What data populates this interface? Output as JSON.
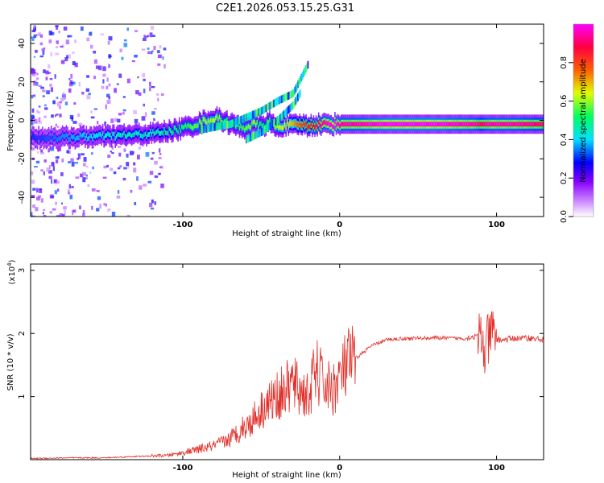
{
  "title": "C2E1.2026.053.15.25.G31",
  "chart_data": [
    {
      "type": "heatmap",
      "xlabel": "Height of straight line (km)",
      "ylabel": "Frequency (Hz)",
      "xlim": [
        -197,
        130
      ],
      "ylim": [
        -50,
        50
      ],
      "xticks": [
        -100,
        0,
        100
      ],
      "yticks": [
        -40,
        -20,
        0,
        20,
        40
      ],
      "ridge": {
        "x": [
          -197,
          -180,
          -160,
          -140,
          -120,
          -105,
          -95,
          -85,
          -78,
          -72,
          -66,
          -62,
          -55,
          -50,
          -45,
          -40,
          -35,
          -30,
          -25,
          -20,
          -15,
          -10,
          -5,
          0,
          10,
          30,
          60,
          85,
          90,
          95,
          110,
          130
        ],
        "y": [
          -9,
          -9,
          -8.5,
          -8,
          -7,
          -5,
          -3,
          0,
          1,
          -1,
          -3,
          -4,
          -2,
          -3,
          -1,
          -4,
          -2,
          -3,
          -2,
          -3,
          -2,
          -2,
          -2,
          -2,
          -2,
          -2,
          -2,
          -2,
          -2,
          -2,
          -2,
          -2
        ],
        "amplitude": [
          0.3,
          0.35,
          0.4,
          0.45,
          0.45,
          0.5,
          0.55,
          0.6,
          0.6,
          0.5,
          0.55,
          0.55,
          0.6,
          0.5,
          0.55,
          0.6,
          0.65,
          0.7,
          0.8,
          0.85,
          0.9,
          0.95,
          1.0,
          0.95,
          0.95,
          1.0,
          1.0,
          0.95,
          0.9,
          0.95,
          0.95,
          0.9
        ]
      },
      "branches": [
        {
          "x": [
            -90,
            -70,
            -50,
            -40,
            -30,
            -20
          ],
          "y": [
            -5,
            -2,
            5,
            10,
            14,
            30
          ]
        },
        {
          "x": [
            -60,
            -50,
            -40,
            -30,
            -25
          ],
          "y": [
            -10,
            -6,
            0,
            8,
            15
          ]
        }
      ],
      "colorbar": {
        "label": "Normalized spectral amplitude",
        "range": [
          0,
          1
        ],
        "ticks": [
          "0.0",
          "0.2",
          "0.4",
          "0.6",
          "0.8"
        ],
        "colors": [
          "#ffffff",
          "#8800ff",
          "#0000ff",
          "#00e0ff",
          "#00ff60",
          "#e0ff00",
          "#ff6000",
          "#ff0040",
          "#ff00ff"
        ]
      }
    },
    {
      "type": "line",
      "xlabel": "Height of straight line (km)",
      "ylabel": "SNR (10 * v/v)",
      "y_multiplier_label": "(x10",
      "y_multiplier_exp": "4",
      "y_multiplier_close": ")",
      "xlim": [
        -197,
        130
      ],
      "ylim": [
        0,
        3.1
      ],
      "xticks": [
        -100,
        0,
        100
      ],
      "yticks": [
        1,
        2,
        3
      ],
      "color": "#e0302a",
      "series": [
        {
          "name": "SNR",
          "x": [
            -197,
            -170,
            -150,
            -130,
            -110,
            -100,
            -90,
            -80,
            -70,
            -60,
            -50,
            -40,
            -30,
            -20,
            -15,
            -10,
            -5,
            0,
            5,
            10,
            15,
            20,
            30,
            40,
            60,
            80,
            85,
            90,
            92,
            95,
            97,
            100,
            105,
            110,
            120,
            130
          ],
          "y": [
            0.02,
            0.03,
            0.03,
            0.05,
            0.06,
            0.1,
            0.15,
            0.2,
            0.3,
            0.5,
            0.8,
            1.0,
            1.2,
            1.0,
            1.4,
            1.2,
            1.1,
            1.3,
            1.5,
            1.6,
            1.7,
            1.8,
            1.9,
            1.92,
            1.93,
            1.92,
            1.95,
            1.95,
            1.7,
            1.9,
            2.0,
            1.9,
            1.9,
            1.92,
            1.93,
            1.9
          ]
        }
      ]
    }
  ]
}
